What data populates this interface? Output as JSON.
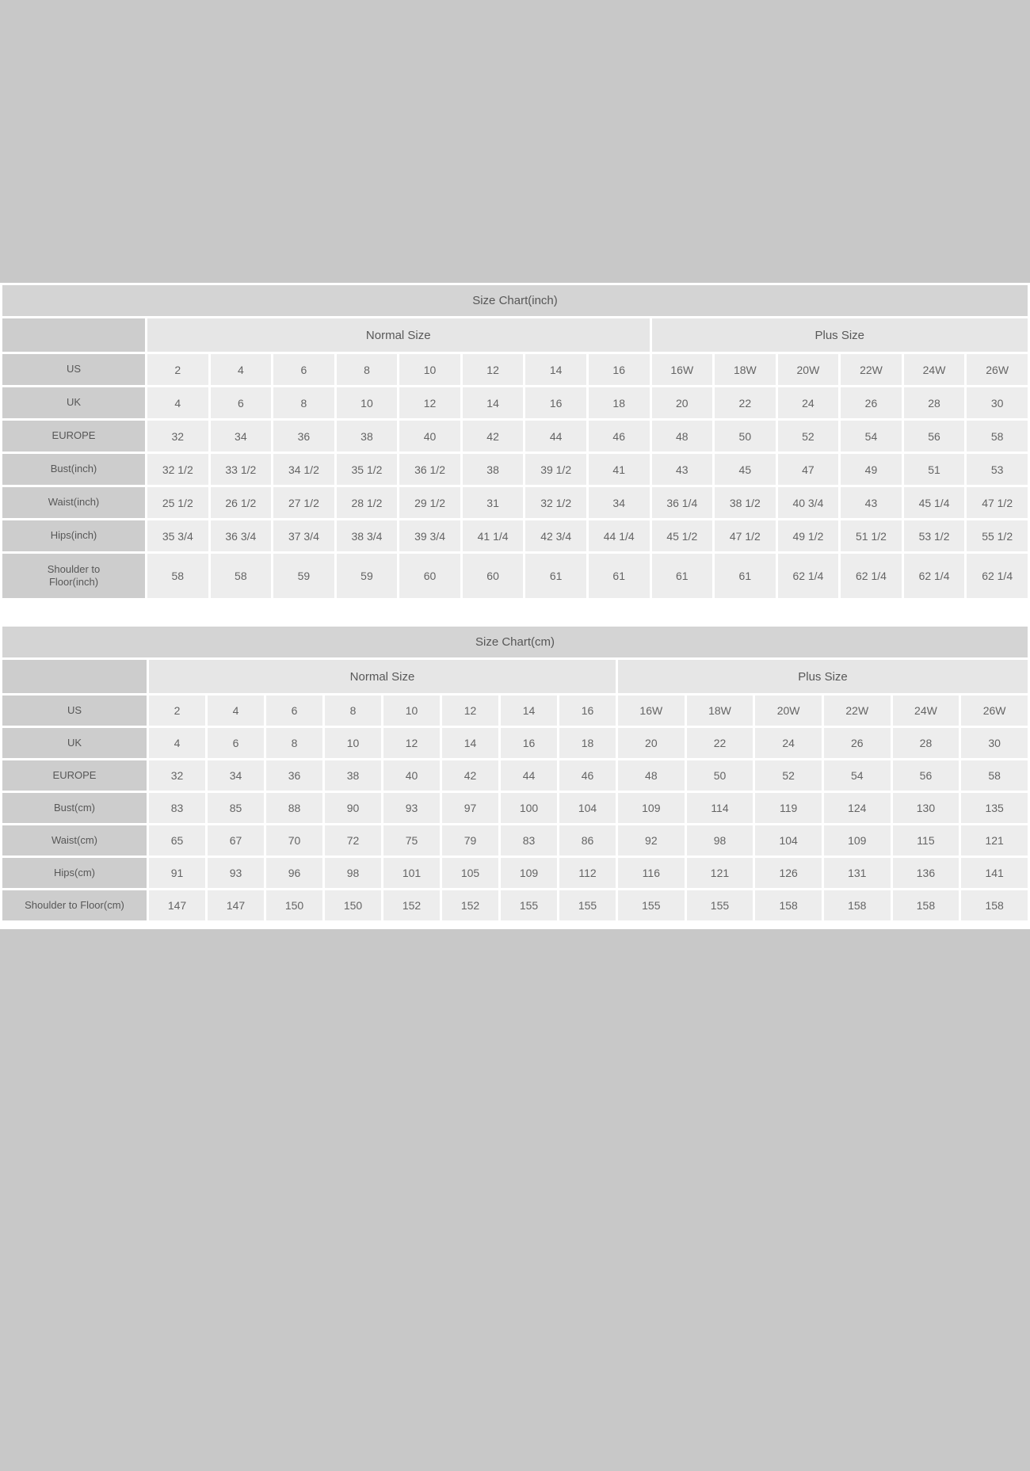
{
  "page": {
    "background": "#c8c8c8",
    "panel_background": "#ffffff"
  },
  "colors": {
    "title_bar": "#d4d4d4",
    "group_header": "#e6e6e6",
    "label_column": "#cdcdcd",
    "data_cell": "#ededed",
    "text": "#5f5f5f"
  },
  "tables": [
    {
      "id": "size-chart-inch",
      "title": "Size Chart(inch)",
      "group_headers": [
        {
          "label": "Normal Size",
          "span": 8
        },
        {
          "label": "Plus Size",
          "span": 6
        }
      ],
      "rows": [
        {
          "label": "US",
          "values": [
            "2",
            "4",
            "6",
            "8",
            "10",
            "12",
            "14",
            "16",
            "16W",
            "18W",
            "20W",
            "22W",
            "24W",
            "26W"
          ]
        },
        {
          "label": "UK",
          "values": [
            "4",
            "6",
            "8",
            "10",
            "12",
            "14",
            "16",
            "18",
            "20",
            "22",
            "24",
            "26",
            "28",
            "30"
          ]
        },
        {
          "label": "EUROPE",
          "values": [
            "32",
            "34",
            "36",
            "38",
            "40",
            "42",
            "44",
            "46",
            "48",
            "50",
            "52",
            "54",
            "56",
            "58"
          ]
        },
        {
          "label": "Bust(inch)",
          "values": [
            "32 1/2",
            "33 1/2",
            "34 1/2",
            "35 1/2",
            "36 1/2",
            "38",
            "39 1/2",
            "41",
            "43",
            "45",
            "47",
            "49",
            "51",
            "53"
          ]
        },
        {
          "label": "Waist(inch)",
          "values": [
            "25 1/2",
            "26 1/2",
            "27 1/2",
            "28 1/2",
            "29 1/2",
            "31",
            "32 1/2",
            "34",
            "36 1/4",
            "38 1/2",
            "40 3/4",
            "43",
            "45 1/4",
            "47 1/2"
          ]
        },
        {
          "label": "Hips(inch)",
          "values": [
            "35 3/4",
            "36 3/4",
            "37 3/4",
            "38 3/4",
            "39 3/4",
            "41 1/4",
            "42 3/4",
            "44 1/4",
            "45 1/2",
            "47 1/2",
            "49 1/2",
            "51 1/2",
            "53 1/2",
            "55 1/2"
          ]
        },
        {
          "label": "Shoulder to\nFloor(inch)",
          "tall": true,
          "values": [
            "58",
            "58",
            "59",
            "59",
            "60",
            "60",
            "61",
            "61",
            "61",
            "61",
            "62 1/4",
            "62 1/4",
            "62 1/4",
            "62 1/4"
          ]
        }
      ]
    },
    {
      "id": "size-chart-cm",
      "title": "Size Chart(cm)",
      "group_headers": [
        {
          "label": "Normal Size",
          "span": 8
        },
        {
          "label": "Plus Size",
          "span": 6
        }
      ],
      "rows": [
        {
          "label": "US",
          "values": [
            "2",
            "4",
            "6",
            "8",
            "10",
            "12",
            "14",
            "16",
            "16W",
            "18W",
            "20W",
            "22W",
            "24W",
            "26W"
          ]
        },
        {
          "label": "UK",
          "values": [
            "4",
            "6",
            "8",
            "10",
            "12",
            "14",
            "16",
            "18",
            "20",
            "22",
            "24",
            "26",
            "28",
            "30"
          ]
        },
        {
          "label": "EUROPE",
          "values": [
            "32",
            "34",
            "36",
            "38",
            "40",
            "42",
            "44",
            "46",
            "48",
            "50",
            "52",
            "54",
            "56",
            "58"
          ]
        },
        {
          "label": "Bust(cm)",
          "values": [
            "83",
            "85",
            "88",
            "90",
            "93",
            "97",
            "100",
            "104",
            "109",
            "114",
            "119",
            "124",
            "130",
            "135"
          ]
        },
        {
          "label": "Waist(cm)",
          "values": [
            "65",
            "67",
            "70",
            "72",
            "75",
            "79",
            "83",
            "86",
            "92",
            "98",
            "104",
            "109",
            "115",
            "121"
          ]
        },
        {
          "label": "Hips(cm)",
          "values": [
            "91",
            "93",
            "96",
            "98",
            "101",
            "105",
            "109",
            "112",
            "116",
            "121",
            "126",
            "131",
            "136",
            "141"
          ]
        },
        {
          "label": "Shoulder to Floor(cm)",
          "values": [
            "147",
            "147",
            "150",
            "150",
            "152",
            "152",
            "155",
            "155",
            "155",
            "155",
            "158",
            "158",
            "158",
            "158"
          ]
        }
      ]
    }
  ]
}
